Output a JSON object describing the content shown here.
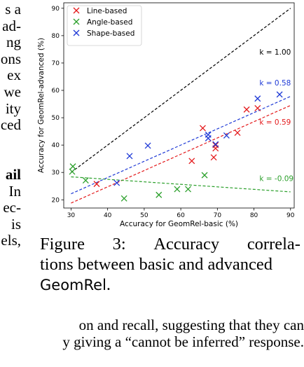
{
  "left_text": [
    {
      "text": "s a",
      "bold": false
    },
    {
      "text": "ad-",
      "bold": false
    },
    {
      "text": "ng",
      "bold": false
    },
    {
      "text": "ons",
      "bold": false
    },
    {
      "text": "ex",
      "bold": false
    },
    {
      "text": "we",
      "bold": false
    },
    {
      "text": "ity",
      "bold": false
    },
    {
      "text": "ced",
      "bold": false
    },
    {
      "text": "",
      "bold": false
    },
    {
      "text": "",
      "bold": false
    },
    {
      "text": "ail",
      "bold": true
    },
    {
      "text": "In",
      "bold": false
    },
    {
      "text": "ec-",
      "bold": false
    },
    {
      "text": "is",
      "bold": false
    },
    {
      "text": "els,",
      "bold": false
    }
  ],
  "bottom_text": [
    "on and recall, suggesting that they can",
    "y giving a “cannot be inferred” response."
  ],
  "caption": {
    "line1_words": [
      "Figure",
      "3:",
      "Accuracy",
      "correla-"
    ],
    "line2": "tions between basic and advanced",
    "line3_sans": "GeomRel",
    "line3_end": "."
  },
  "chart_data": {
    "type": "scatter",
    "xlabel": "Accuracy for GeomRel-basic (%)",
    "ylabel": "Accuracy for GeomRel-advanced (%)",
    "xlim": [
      28,
      91
    ],
    "ylim": [
      17,
      92
    ],
    "xticks": [
      30,
      40,
      50,
      60,
      70,
      80,
      90
    ],
    "yticks": [
      20,
      30,
      40,
      50,
      60,
      70,
      80,
      90
    ],
    "legend_position": "top-left",
    "diagonal": {
      "label": "k = 1.00",
      "color": "#000000",
      "from": [
        30,
        30
      ],
      "to": [
        90,
        90
      ]
    },
    "series": [
      {
        "name": "Line-based",
        "color": "#e41a1c",
        "points": [
          [
            37,
            25.8
          ],
          [
            63,
            34.2
          ],
          [
            66,
            46.2
          ],
          [
            69,
            35.5
          ],
          [
            69.5,
            40
          ],
          [
            69.5,
            38.8
          ],
          [
            75.5,
            44.5
          ],
          [
            78,
            53
          ],
          [
            81,
            53.5
          ]
        ],
        "fit": {
          "from": [
            30,
            18.8
          ],
          "to": [
            90,
            54.5
          ],
          "label": "k = 0.59"
        }
      },
      {
        "name": "Angle-based",
        "color": "#2ca02c",
        "points": [
          [
            30.5,
            32.2
          ],
          [
            30.3,
            30.3
          ],
          [
            34,
            27.1
          ],
          [
            44.5,
            20.5
          ],
          [
            54,
            21.8
          ],
          [
            59,
            23.9
          ],
          [
            62,
            23.9
          ],
          [
            66.5,
            29
          ]
        ],
        "fit": {
          "from": [
            30,
            28.4
          ],
          "to": [
            90,
            22.9
          ],
          "label": "k = -0.09"
        }
      },
      {
        "name": "Shape-based",
        "color": "#1f3ad6",
        "points": [
          [
            42.5,
            26.2
          ],
          [
            46,
            36
          ],
          [
            51,
            39.8
          ],
          [
            67.5,
            42.5
          ],
          [
            67.5,
            43.8
          ],
          [
            69.5,
            40.3
          ],
          [
            72.5,
            43.5
          ],
          [
            81,
            57
          ],
          [
            87,
            58.5
          ]
        ],
        "fit": {
          "from": [
            30,
            22.2
          ],
          "to": [
            90,
            57.8
          ],
          "label": "k = 0.58"
        }
      }
    ]
  }
}
